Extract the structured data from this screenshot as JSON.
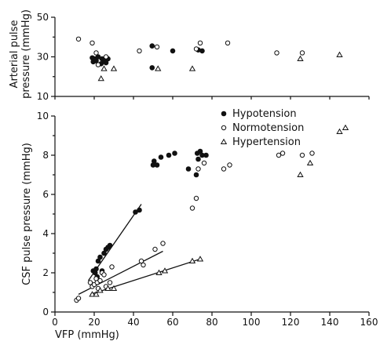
{
  "chart_data": {
    "type": "scatter",
    "xlabel": "VFP (mmHg)",
    "x_ticks": [
      0,
      20,
      40,
      60,
      80,
      100,
      120,
      140,
      160
    ],
    "xlim": [
      0,
      160
    ],
    "grid": false,
    "legend_position": "right, below top panel",
    "panels": [
      {
        "id": "top",
        "ylabel_lines": [
          "Arterial pulse",
          "pressure (mmHg)"
        ],
        "ylim": [
          10,
          50
        ],
        "y_ticks": [
          10,
          30,
          50
        ],
        "minor_y_ticks": [
          20,
          40
        ],
        "series": [
          {
            "name": "Hypotension",
            "marker": "filled-circle",
            "points": [
              [
                19,
                29.5
              ],
              [
                19.5,
                27.5
              ],
              [
                20,
                28
              ],
              [
                20.5,
                29
              ],
              [
                21,
                28
              ],
              [
                22,
                30
              ],
              [
                23.5,
                26.5
              ],
              [
                24,
                29
              ],
              [
                25,
                28
              ],
              [
                26,
                27
              ],
              [
                27,
                29
              ],
              [
                49.5,
                35.5
              ],
              [
                49.5,
                24.5
              ],
              [
                60,
                33
              ],
              [
                73,
                33.5
              ],
              [
                75,
                33
              ]
            ]
          },
          {
            "name": "Normotension",
            "marker": "open-circle",
            "points": [
              [
                12,
                39
              ],
              [
                19,
                37
              ],
              [
                21,
                32
              ],
              [
                22,
                26
              ],
              [
                26,
                30
              ],
              [
                43,
                33
              ],
              [
                52,
                35
              ],
              [
                72,
                34
              ],
              [
                74,
                37
              ],
              [
                88,
                37
              ],
              [
                113,
                32
              ],
              [
                126,
                32
              ]
            ]
          },
          {
            "name": "Hypertension",
            "marker": "open-triangle",
            "points": [
              [
                23.5,
                19
              ],
              [
                25,
                24
              ],
              [
                30,
                24
              ],
              [
                52.5,
                24
              ],
              [
                70,
                24
              ],
              [
                125,
                29
              ],
              [
                145,
                31
              ]
            ]
          }
        ]
      },
      {
        "id": "bottom",
        "ylabel": "CSF pulse pressure (mmHg)",
        "ylim": [
          0,
          10
        ],
        "y_ticks": [
          0,
          2,
          4,
          6,
          8,
          10
        ],
        "minor_y_ticks": [
          1,
          3,
          5,
          7,
          9
        ],
        "series": [
          {
            "name": "Hypotension",
            "marker": "filled-circle",
            "points": [
              [
                19.5,
                2.1
              ],
              [
                20.5,
                2.0
              ],
              [
                21,
                2.2
              ],
              [
                21.5,
                1.8
              ],
              [
                22,
                2.6
              ],
              [
                23,
                2.8
              ],
              [
                24,
                2.1
              ],
              [
                25,
                3.0
              ],
              [
                26,
                3.2
              ],
              [
                27,
                3.3
              ],
              [
                28,
                3.4
              ],
              [
                41,
                5.1
              ],
              [
                43,
                5.2
              ],
              [
                50,
                7.5
              ],
              [
                50.5,
                7.7
              ],
              [
                52,
                7.5
              ],
              [
                54,
                7.9
              ],
              [
                58,
                8.0
              ],
              [
                61,
                8.1
              ],
              [
                68,
                7.3
              ],
              [
                72,
                7.0
              ],
              [
                72.5,
                8.1
              ],
              [
                73,
                7.8
              ],
              [
                74,
                8.2
              ],
              [
                75,
                8.0
              ],
              [
                77,
                8.0
              ]
            ]
          },
          {
            "name": "Normotension",
            "marker": "open-circle",
            "points": [
              [
                11,
                0.6
              ],
              [
                12,
                0.7
              ],
              [
                18,
                1.5
              ],
              [
                19,
                1.3
              ],
              [
                20,
                1.4
              ],
              [
                21,
                1.7
              ],
              [
                21.5,
                1.5
              ],
              [
                22,
                1.2
              ],
              [
                23,
                1.6
              ],
              [
                24,
                2.0
              ],
              [
                25,
                1.9
              ],
              [
                26,
                1.3
              ],
              [
                28,
                1.5
              ],
              [
                29,
                2.3
              ],
              [
                44,
                2.6
              ],
              [
                45,
                2.4
              ],
              [
                51,
                3.2
              ],
              [
                55,
                3.5
              ],
              [
                70,
                5.3
              ],
              [
                72,
                5.8
              ],
              [
                73,
                7.3
              ],
              [
                76,
                7.6
              ],
              [
                86,
                7.3
              ],
              [
                89,
                7.5
              ],
              [
                114,
                8.0
              ],
              [
                116,
                8.1
              ],
              [
                126,
                8.0
              ],
              [
                131,
                8.1
              ]
            ]
          },
          {
            "name": "Hypertension",
            "marker": "open-triangle",
            "points": [
              [
                19,
                0.9
              ],
              [
                21,
                0.9
              ],
              [
                23,
                1.1
              ],
              [
                27,
                1.2
              ],
              [
                30,
                1.2
              ],
              [
                53,
                2.0
              ],
              [
                56,
                2.1
              ],
              [
                70,
                2.6
              ],
              [
                74,
                2.7
              ],
              [
                125,
                7.0
              ],
              [
                130,
                7.6
              ],
              [
                145,
                9.2
              ],
              [
                148,
                9.4
              ]
            ]
          }
        ],
        "regression_lines": [
          {
            "series": "Hypotension",
            "from": [
              17,
              1.6
            ],
            "to": [
              44,
              5.5
            ]
          },
          {
            "series": "Normotension",
            "from": [
              12,
              0.9
            ],
            "to": [
              55,
              3.1
            ]
          },
          {
            "series": "Hypertension",
            "from": [
              18,
              0.9
            ],
            "to": [
              74,
              2.7
            ]
          }
        ]
      }
    ]
  }
}
